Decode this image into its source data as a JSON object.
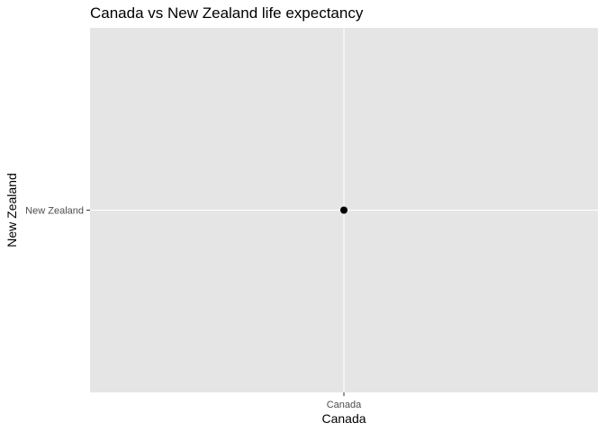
{
  "chart_data": {
    "type": "scatter",
    "title": "Canada vs New Zealand life expectancy",
    "xlabel": "Canada",
    "ylabel": "New Zealand",
    "x_scale": "categorical",
    "y_scale": "categorical",
    "x_categories": [
      "Canada"
    ],
    "y_categories": [
      "New Zealand"
    ],
    "points": [
      {
        "x": "Canada",
        "y": "New Zealand"
      }
    ],
    "grid": true,
    "colors": {
      "panel_background": "#e5e5e5",
      "grid": "#ffffff",
      "point": "#000000",
      "tick_label": "#4d4d4d",
      "tick_mark": "#333333"
    }
  }
}
